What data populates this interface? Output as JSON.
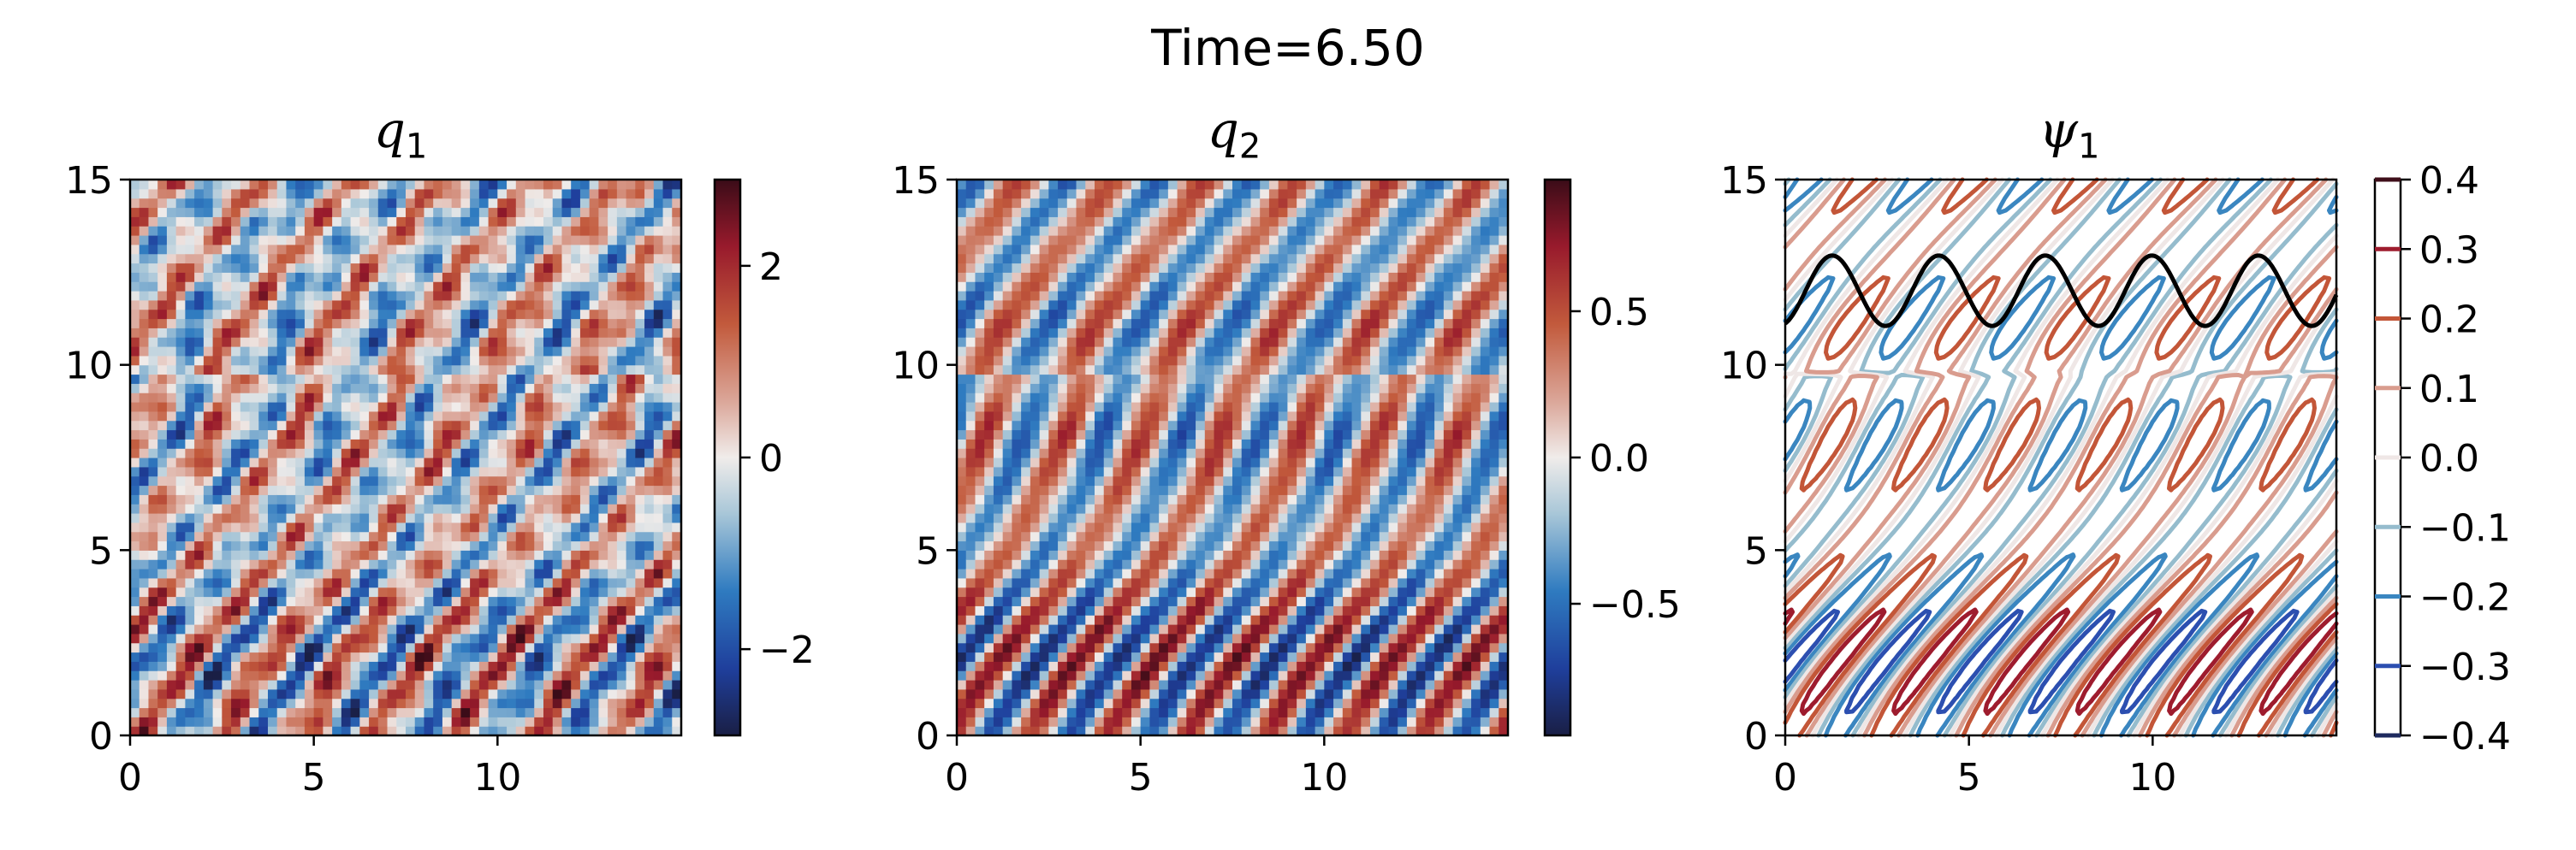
{
  "figure": {
    "suptitle": "Time=6.50"
  },
  "chart_data": [
    {
      "type": "heatmap",
      "title": "q",
      "title_subscript": "1",
      "xlabel": "",
      "ylabel": "",
      "xlim": [
        0,
        15
      ],
      "ylim": [
        0,
        15
      ],
      "x_ticks": [
        0,
        5,
        10
      ],
      "y_ticks": [
        0,
        5,
        10,
        15
      ],
      "colormap": "diverging blue-white-red",
      "colorbar": {
        "ticks": [
          2,
          0,
          -2
        ],
        "labels": [
          "2",
          "0",
          "−2"
        ],
        "range": [
          -2.9,
          2.9
        ]
      },
      "field": {
        "amplitude": 2.6,
        "kx_upper": 6,
        "kx_lower": 7,
        "tilt": -0.12,
        "noise": 0.45
      }
    },
    {
      "type": "heatmap",
      "title": "q",
      "title_subscript": "2",
      "xlabel": "",
      "ylabel": "",
      "xlim": [
        0,
        15
      ],
      "ylim": [
        0,
        15
      ],
      "x_ticks": [
        0,
        5,
        10
      ],
      "y_ticks": [
        0,
        5,
        10,
        15
      ],
      "colormap": "diverging blue-white-red",
      "colorbar": {
        "ticks": [
          0.5,
          0.0,
          -0.5
        ],
        "labels": [
          "0.5",
          "0.0",
          "−0.5"
        ],
        "range": [
          -0.95,
          0.95
        ]
      },
      "field": {
        "amplitude": 0.9,
        "kx_upper": 6,
        "kx_lower": 7,
        "tilt": -0.1,
        "noise": 0.08
      }
    },
    {
      "type": "contour",
      "title": "ψ",
      "title_subscript": "1",
      "xlabel": "",
      "ylabel": "",
      "xlim": [
        0,
        15
      ],
      "ylim": [
        0,
        15
      ],
      "x_ticks": [
        0,
        5,
        10
      ],
      "y_ticks": [
        0,
        5,
        10,
        15
      ],
      "levels": [
        -0.4,
        -0.3,
        -0.2,
        -0.1,
        0.0,
        0.1,
        0.2,
        0.3,
        0.4
      ],
      "level_labels": [
        "−0.4",
        "−0.3",
        "−0.2",
        "−0.1",
        "0.0",
        "0.1",
        "0.2",
        "0.3",
        "0.4"
      ],
      "level_colors": [
        "#1e2a5e",
        "#2c4fb0",
        "#3a86c0",
        "#95bccd",
        "#efe7e6",
        "#d99c8e",
        "#c35638",
        "#9e1c2e",
        "#3f0f1a"
      ],
      "field": {
        "amplitude": 0.36,
        "kx_upper": 5,
        "kx_lower": 6,
        "tilt": -0.12
      },
      "overlay": {
        "type": "line",
        "color": "#000000",
        "y_center": 12.0,
        "amplitude": 0.95,
        "wavelength": 2.9
      }
    }
  ]
}
